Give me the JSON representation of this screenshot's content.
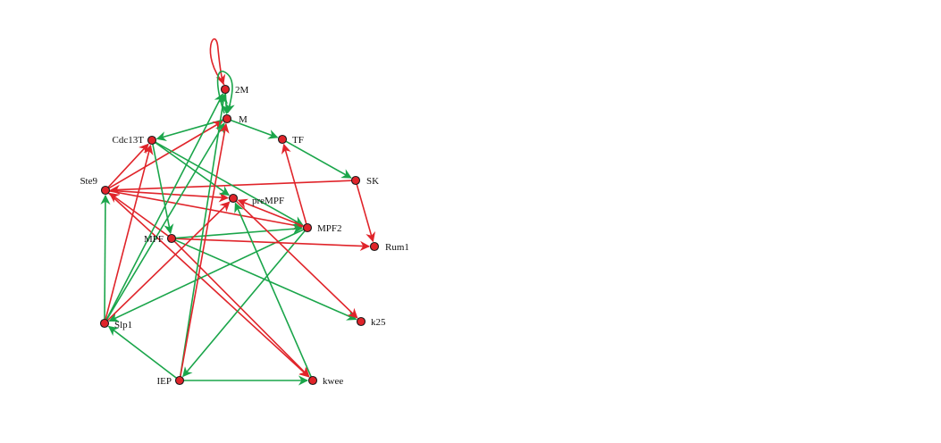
{
  "colors": {
    "activation": "#1aa54a",
    "inhibition": "#e0242a",
    "node_fill": "#e0242a",
    "node_stroke": "#1a1a1a"
  },
  "nodes": [
    {
      "id": "2M",
      "label": "2M"
    },
    {
      "id": "M",
      "label": "M"
    },
    {
      "id": "Cdc13T",
      "label": "Cdc13T"
    },
    {
      "id": "TF",
      "label": "TF"
    },
    {
      "id": "SK",
      "label": "SK"
    },
    {
      "id": "Ste9",
      "label": "Ste9"
    },
    {
      "id": "preMPF",
      "label": "preMPF"
    },
    {
      "id": "MPF2",
      "label": "MPF2"
    },
    {
      "id": "MPF",
      "label": "MPF"
    },
    {
      "id": "Rum1",
      "label": "Rum1"
    },
    {
      "id": "k25",
      "label": "k25"
    },
    {
      "id": "Slp1",
      "label": "Slp1"
    },
    {
      "id": "IEP",
      "label": "IEP"
    },
    {
      "id": "kwee",
      "label": "kwee"
    }
  ],
  "edges": [
    {
      "from": "2M",
      "to": "2M",
      "type": "inhibition"
    },
    {
      "from": "M",
      "to": "M",
      "type": "activation"
    },
    {
      "from": "2M",
      "to": "M",
      "type": "activation"
    },
    {
      "from": "M",
      "to": "TF",
      "type": "activation"
    },
    {
      "from": "M",
      "to": "Cdc13T",
      "type": "activation"
    },
    {
      "from": "TF",
      "to": "SK",
      "type": "activation"
    },
    {
      "from": "SK",
      "to": "Rum1",
      "type": "inhibition"
    },
    {
      "from": "SK",
      "to": "Ste9",
      "type": "inhibition"
    },
    {
      "from": "Ste9",
      "to": "Cdc13T",
      "type": "inhibition"
    },
    {
      "from": "Ste9",
      "to": "M",
      "type": "inhibition"
    },
    {
      "from": "Ste9",
      "to": "preMPF",
      "type": "inhibition"
    },
    {
      "from": "Ste9",
      "to": "MPF2",
      "type": "inhibition"
    },
    {
      "from": "Ste9",
      "to": "kwee",
      "type": "inhibition"
    },
    {
      "from": "Cdc13T",
      "to": "MPF",
      "type": "activation"
    },
    {
      "from": "Cdc13T",
      "to": "preMPF",
      "type": "activation"
    },
    {
      "from": "Cdc13T",
      "to": "MPF2",
      "type": "activation"
    },
    {
      "from": "MPF2",
      "to": "TF",
      "type": "inhibition"
    },
    {
      "from": "MPF2",
      "to": "IEP",
      "type": "activation"
    },
    {
      "from": "MPF2",
      "to": "Slp1",
      "type": "activation"
    },
    {
      "from": "MPF2",
      "to": "preMPF",
      "type": "inhibition"
    },
    {
      "from": "MPF",
      "to": "Ste9",
      "type": "inhibition"
    },
    {
      "from": "MPF",
      "to": "Rum1",
      "type": "inhibition"
    },
    {
      "from": "MPF",
      "to": "MPF2",
      "type": "activation"
    },
    {
      "from": "MPF",
      "to": "k25",
      "type": "activation"
    },
    {
      "from": "MPF",
      "to": "kwee",
      "type": "inhibition"
    },
    {
      "from": "preMPF",
      "to": "k25",
      "type": "inhibition"
    },
    {
      "from": "Slp1",
      "to": "Ste9",
      "type": "activation"
    },
    {
      "from": "Slp1",
      "to": "2M",
      "type": "activation"
    },
    {
      "from": "Slp1",
      "to": "M",
      "type": "activation"
    },
    {
      "from": "Slp1",
      "to": "preMPF",
      "type": "inhibition"
    },
    {
      "from": "Slp1",
      "to": "Cdc13T",
      "type": "inhibition"
    },
    {
      "from": "IEP",
      "to": "Slp1",
      "type": "activation"
    },
    {
      "from": "IEP",
      "to": "kwee",
      "type": "activation"
    },
    {
      "from": "IEP",
      "to": "2M",
      "type": "activation"
    },
    {
      "from": "IEP",
      "to": "M",
      "type": "inhibition"
    },
    {
      "from": "kwee",
      "to": "preMPF",
      "type": "activation"
    }
  ]
}
